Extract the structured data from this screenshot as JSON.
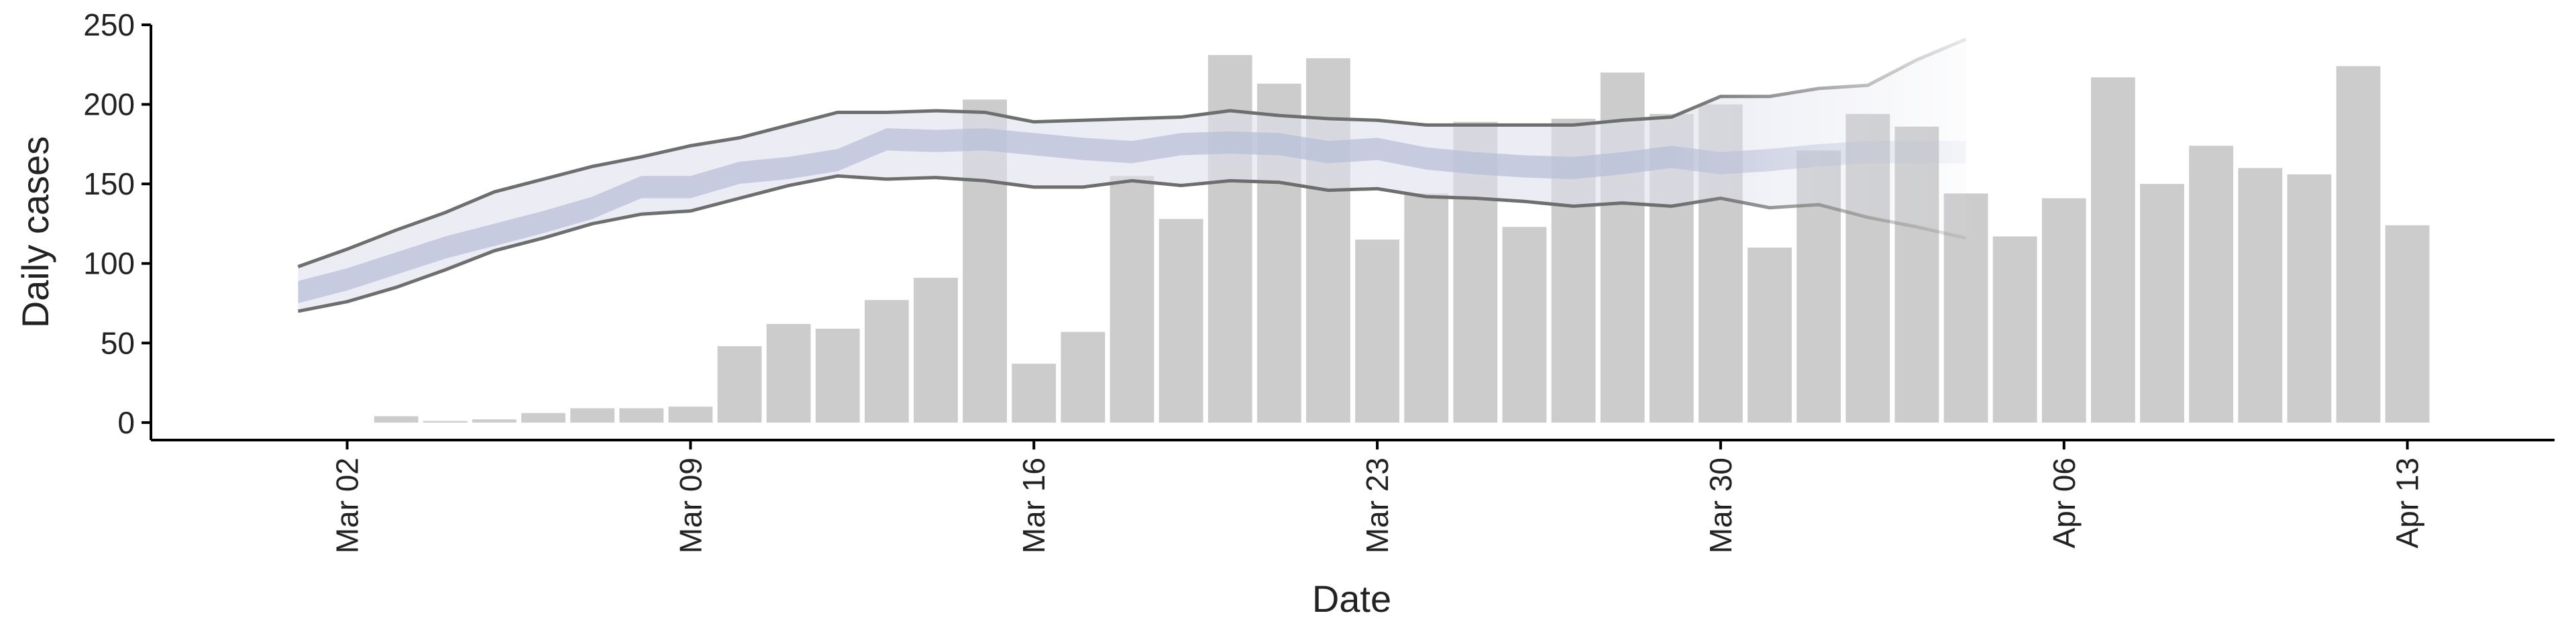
{
  "chart_data": {
    "type": "bar",
    "x_label": "Date",
    "y_label": "Daily cases",
    "xlim": [
      "Feb 27",
      "Apr 16"
    ],
    "ylim": [
      -11,
      250
    ],
    "xticks": [
      "Mar 02",
      "Mar 09",
      "Mar 16",
      "Mar 23",
      "Mar 30",
      "Apr 06",
      "Apr 13"
    ],
    "yticks": [
      0,
      50,
      100,
      150,
      200,
      250
    ],
    "bars": {
      "color": "#cccccc",
      "x": [
        "Mar 03",
        "Mar 04",
        "Mar 05",
        "Mar 06",
        "Mar 07",
        "Mar 08",
        "Mar 09",
        "Mar 10",
        "Mar 11",
        "Mar 12",
        "Mar 13",
        "Mar 14",
        "Mar 15",
        "Mar 16",
        "Mar 17",
        "Mar 18",
        "Mar 19",
        "Mar 20",
        "Mar 21",
        "Mar 22",
        "Mar 23",
        "Mar 24",
        "Mar 25",
        "Mar 26",
        "Mar 27",
        "Mar 28",
        "Mar 29",
        "Mar 30",
        "Mar 31",
        "Apr 01",
        "Apr 02",
        "Apr 03",
        "Apr 04",
        "Apr 05",
        "Apr 06",
        "Apr 07",
        "Apr 08",
        "Apr 09",
        "Apr 10",
        "Apr 11",
        "Apr 12",
        "Apr 13"
      ],
      "values": [
        4,
        1,
        2,
        6,
        9,
        9,
        10,
        48,
        62,
        59,
        77,
        91,
        203,
        37,
        57,
        155,
        128,
        231,
        213,
        229,
        115,
        144,
        189,
        123,
        191,
        220,
        194,
        200,
        110,
        171,
        194,
        186,
        144,
        117,
        141,
        217,
        150,
        174,
        160,
        156,
        224,
        124
      ]
    },
    "model": {
      "line_color": "#6e6e6e",
      "band_color": "#dfe1ec",
      "inner_color": "#b9c0d8",
      "x": [
        "Mar 01",
        "Mar 02",
        "Mar 03",
        "Mar 04",
        "Mar 05",
        "Mar 06",
        "Mar 07",
        "Mar 08",
        "Mar 09",
        "Mar 10",
        "Mar 11",
        "Mar 12",
        "Mar 13",
        "Mar 14",
        "Mar 15",
        "Mar 16",
        "Mar 17",
        "Mar 18",
        "Mar 19",
        "Mar 20",
        "Mar 21",
        "Mar 22",
        "Mar 23",
        "Mar 24",
        "Mar 25",
        "Mar 26",
        "Mar 27",
        "Mar 28",
        "Mar 29",
        "Mar 30",
        "Mar 31",
        "Apr 01",
        "Apr 02",
        "Apr 03",
        "Apr 04"
      ],
      "upper": [
        98,
        109,
        121,
        132,
        145,
        153,
        161,
        167,
        174,
        179,
        187,
        195,
        195,
        196,
        195,
        189,
        190,
        191,
        192,
        196,
        193,
        191,
        190,
        187,
        187,
        187,
        187,
        190,
        192,
        205,
        205,
        210,
        212,
        228,
        241
      ],
      "lower": [
        70,
        76,
        85,
        96,
        108,
        116,
        125,
        131,
        133,
        141,
        149,
        155,
        153,
        154,
        152,
        148,
        148,
        152,
        149,
        152,
        151,
        146,
        147,
        142,
        141,
        139,
        136,
        138,
        136,
        141,
        135,
        137,
        129,
        123,
        116
      ],
      "inner_upper": [
        89,
        97,
        107,
        117,
        125,
        133,
        142,
        155,
        155,
        164,
        167,
        172,
        185,
        184,
        185,
        182,
        179,
        177,
        182,
        183,
        182,
        177,
        179,
        173,
        170,
        168,
        167,
        170,
        174,
        170,
        172,
        175,
        177,
        177,
        177
      ],
      "inner_lower": [
        75,
        83,
        93,
        103,
        111,
        119,
        128,
        141,
        141,
        150,
        153,
        158,
        171,
        170,
        171,
        168,
        165,
        163,
        168,
        169,
        168,
        163,
        165,
        159,
        156,
        154,
        153,
        156,
        160,
        156,
        158,
        161,
        163,
        163,
        163
      ]
    }
  }
}
